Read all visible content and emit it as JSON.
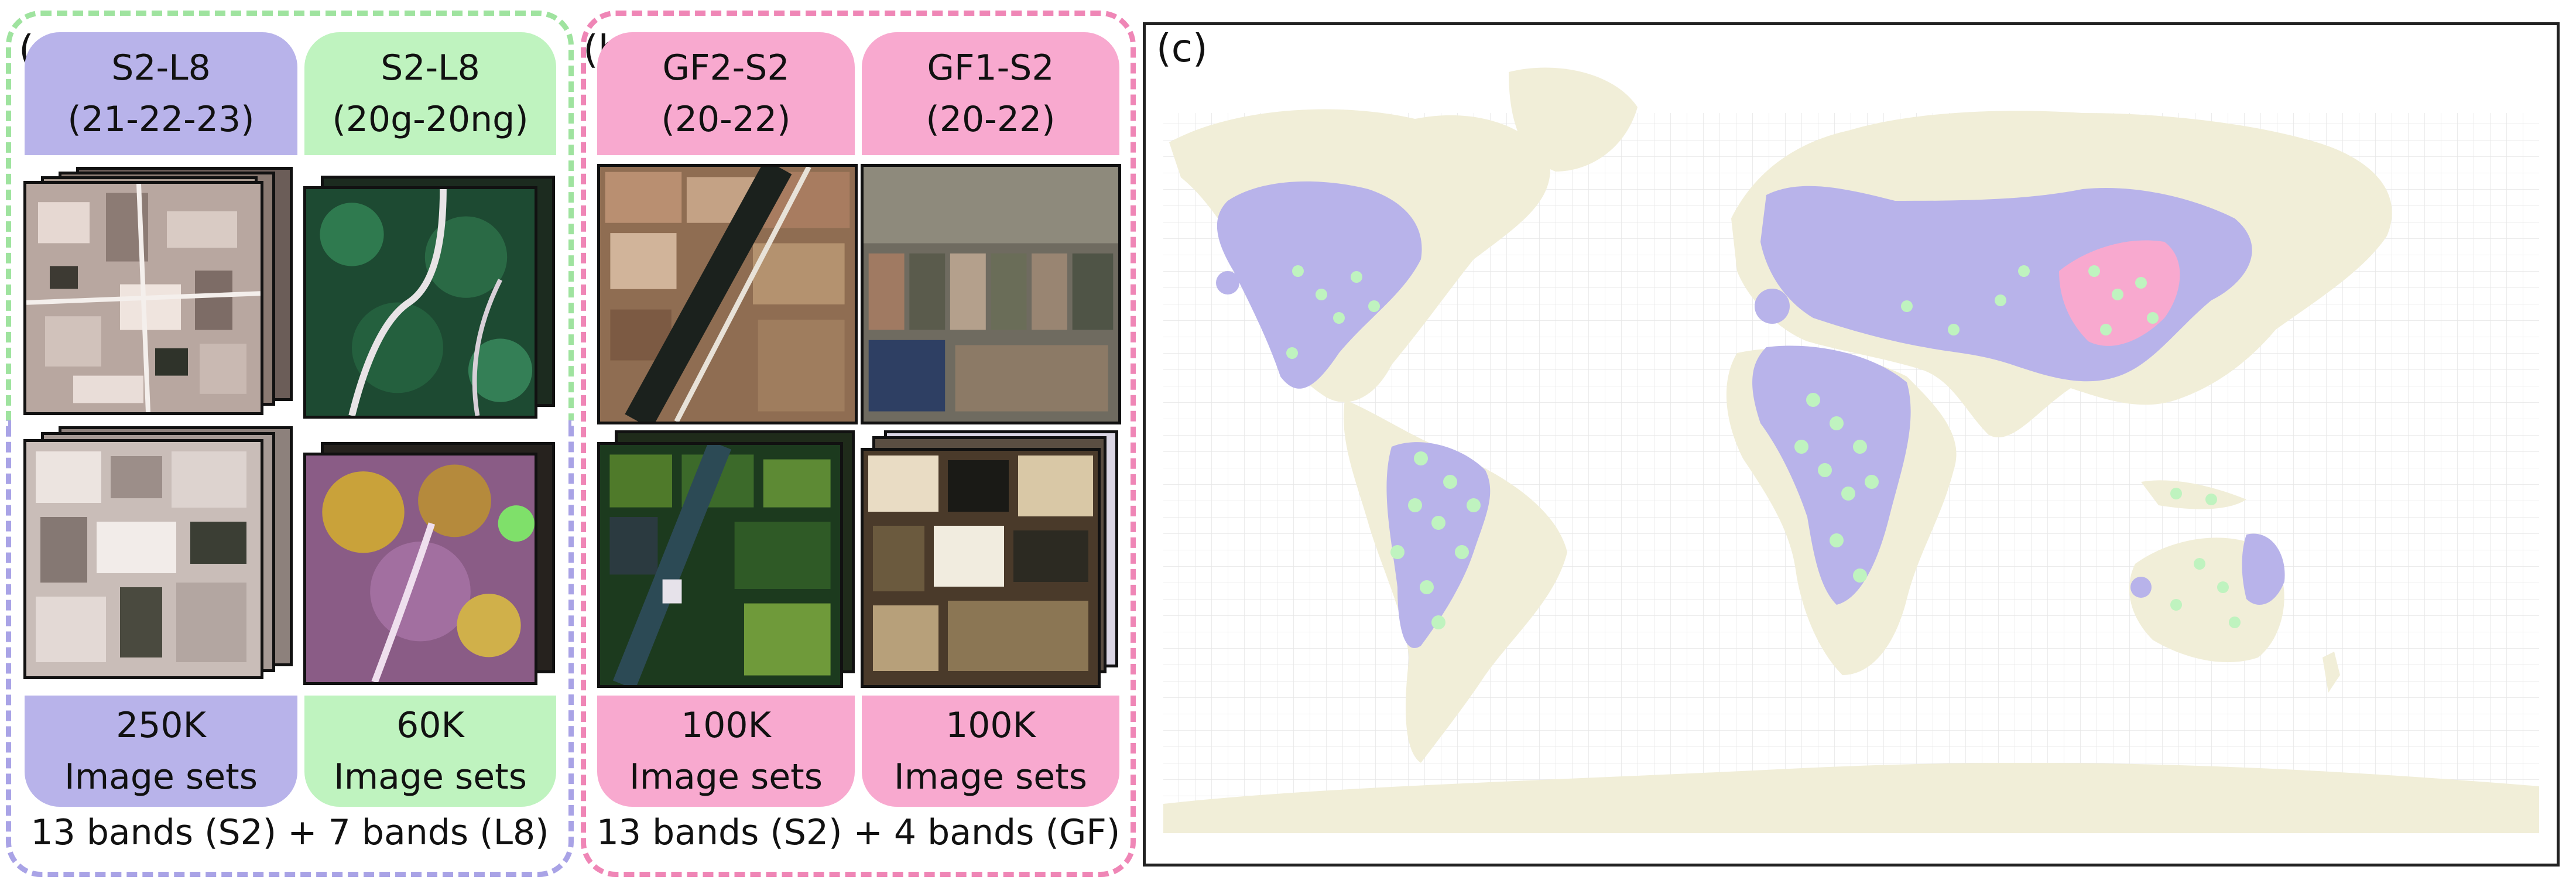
{
  "panel_a": {
    "letter": "(a)",
    "col1": {
      "title_line1": "S2-L8",
      "title_line2": "(21-22-23)",
      "count": "250K",
      "count_unit": "Image sets"
    },
    "col2": {
      "title_line1": "S2-L8",
      "title_line2": "(20g-20ng)",
      "count": "60K",
      "count_unit": "Image sets"
    },
    "bands": "13 bands (S2) + 7 bands (L8)"
  },
  "panel_b": {
    "letter": "(b)",
    "col1": {
      "title_line1": "GF2-S2",
      "title_line2": "(20-22)",
      "count": "100K",
      "count_unit": "Image sets"
    },
    "col2": {
      "title_line1": "GF1-S2",
      "title_line2": "(20-22)",
      "count": "100K",
      "count_unit": "Image sets"
    },
    "bands": "13 bands (S2) + 4 bands (GF)"
  },
  "panel_c": {
    "letter": "(c)"
  },
  "colors": {
    "s2_l8_sequential": "#b8b3ea",
    "s2_l8_growth": "#bff3bf",
    "gf_s2": "#f8a9cf",
    "land": "#f1eed8",
    "frame_a_top": "#9fe39f",
    "frame_a_bottom": "#a9a3e6",
    "frame_b": "#ef86b6"
  }
}
